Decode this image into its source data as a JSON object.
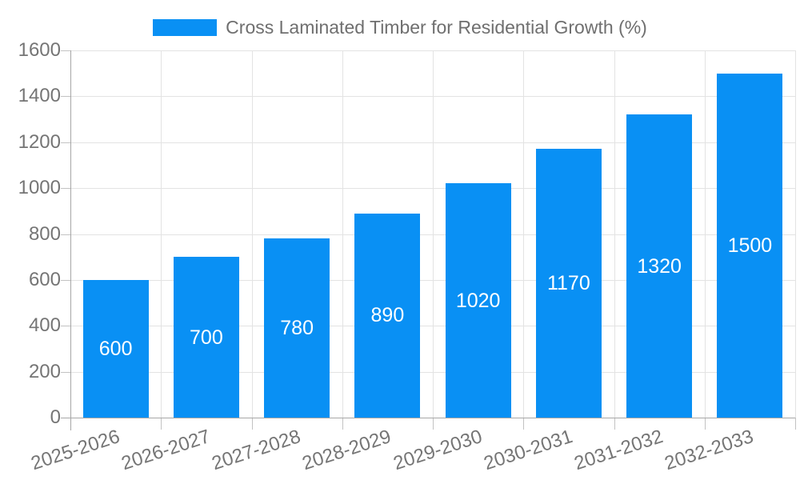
{
  "chart_data": {
    "type": "bar",
    "title": "Cross Laminated Timber for Residential Growth (%)",
    "categories": [
      "2025-2026",
      "2026-2027",
      "2027-2028",
      "2028-2029",
      "2029-2030",
      "2030-2031",
      "2031-2032",
      "2032-2033"
    ],
    "values": [
      600,
      700,
      780,
      890,
      1020,
      1170,
      1320,
      1500
    ],
    "series": [
      {
        "name": "Cross Laminated Timber for Residential Growth (%)",
        "values": [
          600,
          700,
          780,
          890,
          1020,
          1170,
          1320,
          1500
        ]
      }
    ],
    "xlabel": "",
    "ylabel": "",
    "ylim": [
      0,
      1600
    ],
    "yticks": [
      0,
      200,
      400,
      600,
      800,
      1000,
      1200,
      1400,
      1600
    ],
    "grid": true,
    "legend_position": "top",
    "value_labels_inside_bars": true,
    "x_label_rotation_deg": -18,
    "colors": {
      "bar": "#0990f4",
      "value_label": "#ffffff",
      "axis_text": "#757575",
      "legend_text": "#6f6f6f",
      "gridline": "#e3e3e3",
      "axis_line": "#a6a6a6",
      "tick": "#c2c2c2",
      "background": "#ffffff"
    }
  }
}
